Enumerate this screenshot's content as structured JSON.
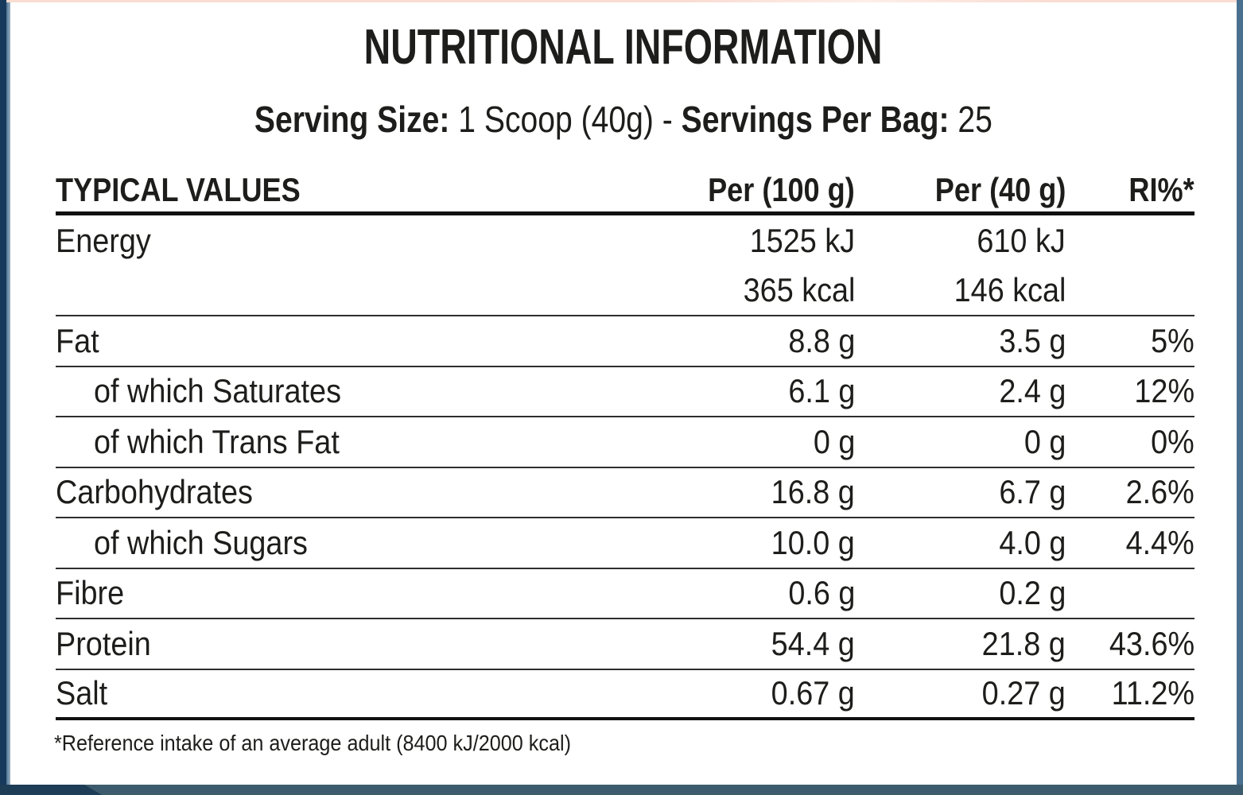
{
  "title": "NUTRITIONAL INFORMATION",
  "serving": {
    "size_label": "Serving Size:",
    "size_value": "1 Scoop (40g)",
    "separator": "-",
    "per_bag_label": "Servings Per Bag:",
    "per_bag_value": "25"
  },
  "table": {
    "headers": [
      "TYPICAL VALUES",
      "Per (100 g)",
      "Per (40 g)",
      "RI%*"
    ],
    "rows": [
      {
        "label": "Energy",
        "per100": "1525 kJ",
        "per40": "610 kJ",
        "ri": "",
        "indent": false,
        "divider": "none"
      },
      {
        "label": "",
        "per100": "365 kcal",
        "per40": "146 kcal",
        "ri": "",
        "indent": false,
        "divider": "thin"
      },
      {
        "label": "Fat",
        "per100": "8.8 g",
        "per40": "3.5 g",
        "ri": "5%",
        "indent": false,
        "divider": "thin"
      },
      {
        "label": "of which Saturates",
        "per100": "6.1 g",
        "per40": "2.4 g",
        "ri": "12%",
        "indent": true,
        "divider": "thin"
      },
      {
        "label": "of which Trans Fat",
        "per100": "0 g",
        "per40": "0 g",
        "ri": "0%",
        "indent": true,
        "divider": "thin"
      },
      {
        "label": "Carbohydrates",
        "per100": "16.8 g",
        "per40": "6.7 g",
        "ri": "2.6%",
        "indent": false,
        "divider": "thin"
      },
      {
        "label": "of which Sugars",
        "per100": "10.0 g",
        "per40": "4.0 g",
        "ri": "4.4%",
        "indent": true,
        "divider": "thin"
      },
      {
        "label": "Fibre",
        "per100": "0.6 g",
        "per40": "0.2 g",
        "ri": "",
        "indent": false,
        "divider": "thin"
      },
      {
        "label": "Protein",
        "per100": "54.4 g",
        "per40": "21.8 g",
        "ri": "43.6%",
        "indent": false,
        "divider": "thin"
      },
      {
        "label": "Salt",
        "per100": "0.67 g",
        "per40": "0.27 g",
        "ri": "11.2%",
        "indent": false,
        "divider": "thick"
      }
    ]
  },
  "footnote": "*Reference intake of an average adult (8400 kJ/2000 kcal)",
  "colors": {
    "text": "#1d1d1b",
    "frame_navy": "#173a5c",
    "frame_slate": "#4e7394",
    "frame_right": "#49708f",
    "top_line": "#f9dcd2",
    "bottom_bar": "#3c5b6d",
    "bottom_bar_left": "#1d3c55",
    "panel_bg": "#ffffff",
    "divider_thin": "#2e2e2e",
    "divider_thick": "#111111"
  }
}
